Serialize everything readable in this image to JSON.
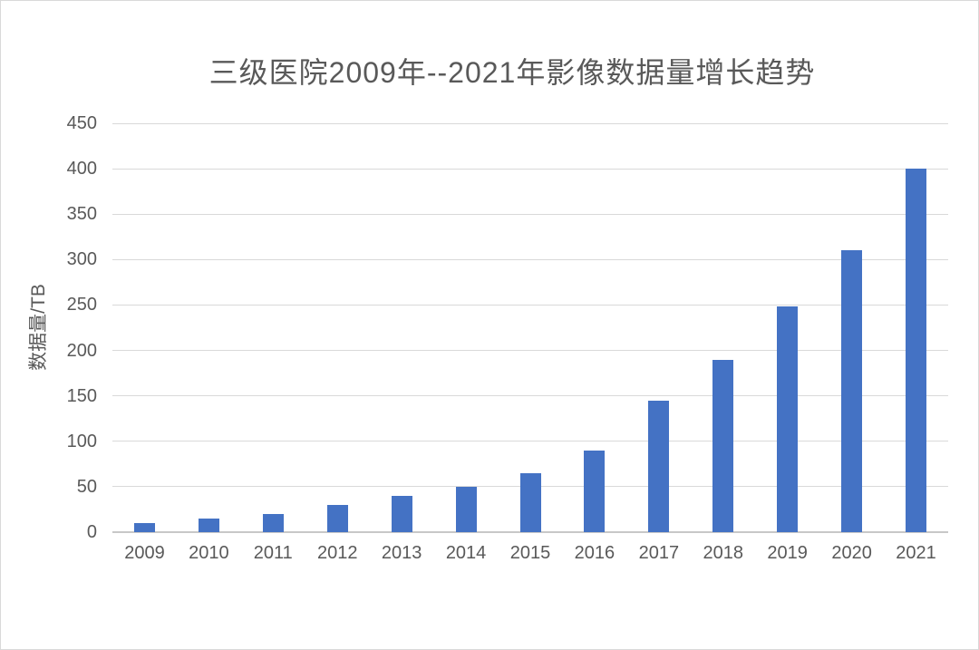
{
  "chart_data": {
    "type": "bar",
    "title": "三级医院2009年--2021年影像数据量增长趋势",
    "xlabel": "",
    "ylabel": "数据量/TB",
    "categories": [
      "2009",
      "2010",
      "2011",
      "2012",
      "2013",
      "2014",
      "2015",
      "2016",
      "2017",
      "2018",
      "2019",
      "2020",
      "2021"
    ],
    "values": [
      10,
      15,
      20,
      30,
      40,
      50,
      65,
      90,
      145,
      190,
      248,
      310,
      400
    ],
    "ylim": [
      0,
      450
    ],
    "y_tick_step": 50,
    "y_tick_labels": [
      "0",
      "50",
      "100",
      "150",
      "200",
      "250",
      "300",
      "350",
      "400",
      "450"
    ],
    "grid": "horizontal",
    "legend": "none",
    "colors": {
      "bar_fill": "#4472c4",
      "gridline": "#d9d9d9",
      "axis_line": "#c8c8c8",
      "text": "#595959",
      "background": "#ffffff",
      "border": "#d9d9d9"
    }
  }
}
